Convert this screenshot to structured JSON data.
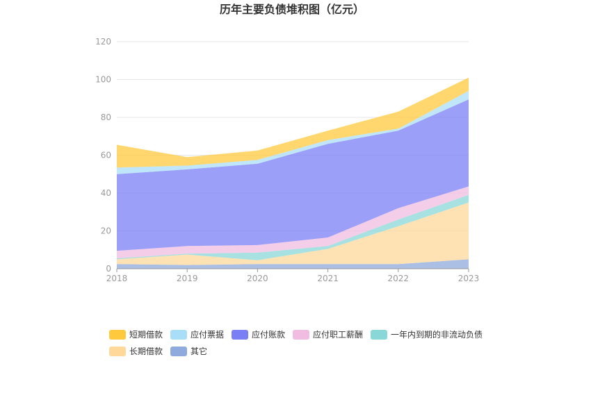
{
  "chart_data": {
    "type": "area",
    "stacked": true,
    "title": "历年主要负债堆积图（亿元）",
    "xlabel": "",
    "ylabel": "",
    "categories": [
      "2018",
      "2019",
      "2020",
      "2021",
      "2022",
      "2023"
    ],
    "ylim": [
      0,
      120
    ],
    "yticks": [
      0,
      20,
      40,
      60,
      80,
      100,
      120
    ],
    "grid": true,
    "legend_position": "bottom",
    "series": [
      {
        "name": "其它",
        "color": "#8faadc",
        "values": [
          2.5,
          2.0,
          2.5,
          2.5,
          2.5,
          5.0
        ]
      },
      {
        "name": "长期借款",
        "color": "#ffd89a",
        "values": [
          2.5,
          5.5,
          2.0,
          8.0,
          20.0,
          30.0
        ]
      },
      {
        "name": "一年内到期的非流动负债",
        "color": "#8ad7d7",
        "values": [
          0.5,
          0.5,
          4.0,
          1.5,
          3.5,
          4.0
        ]
      },
      {
        "name": "应付职工薪酬",
        "color": "#f0bde0",
        "values": [
          4.0,
          4.0,
          4.0,
          4.5,
          6.0,
          4.5
        ]
      },
      {
        "name": "应付账款",
        "color": "#7a7ff5",
        "values": [
          40.5,
          40.5,
          43.0,
          49.5,
          41.0,
          46.0
        ]
      },
      {
        "name": "应付票据",
        "color": "#a9def8",
        "values": [
          3.5,
          2.0,
          2.0,
          2.0,
          1.0,
          4.5
        ]
      },
      {
        "name": "短期借款",
        "color": "#ffc93d",
        "values": [
          12.0,
          4.5,
          5.0,
          5.0,
          9.0,
          7.0
        ]
      }
    ],
    "legend_order": [
      "短期借款",
      "应付票据",
      "应付账款",
      "应付职工薪酬",
      "一年内到期的非流动负债",
      "长期借款",
      "其它"
    ]
  }
}
